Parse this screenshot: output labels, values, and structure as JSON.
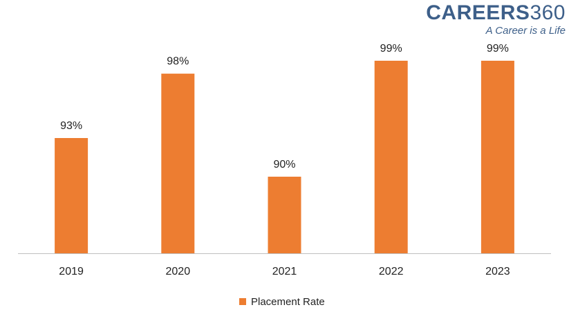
{
  "logo": {
    "brand_bold": "CAREERS",
    "brand_num": "360",
    "tagline": "A Career is a Life"
  },
  "colors": {
    "bar": "#ed7d31",
    "brand": "#3d5f89",
    "axis": "#bfbfbf",
    "text": "#222222"
  },
  "chart_data": {
    "type": "bar",
    "categories": [
      "2019",
      "2020",
      "2021",
      "2022",
      "2023"
    ],
    "series": [
      {
        "name": "Placement Rate",
        "values": [
          93,
          98,
          90,
          99,
          99
        ],
        "labels": [
          "93%",
          "98%",
          "90%",
          "99%",
          "99%"
        ]
      }
    ],
    "title": "",
    "xlabel": "",
    "ylabel": "",
    "grid": false,
    "legend": "bottom"
  }
}
